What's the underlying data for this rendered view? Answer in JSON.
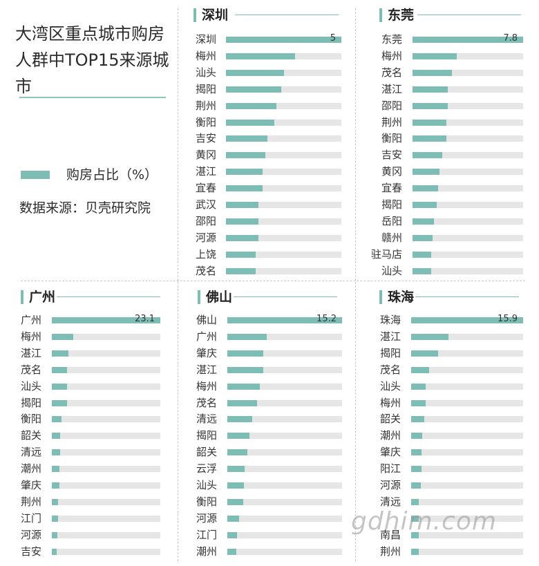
{
  "title": "大湾区重点城市购房人群中TOP15来源城市",
  "legend": {
    "label": "购房占比（%）",
    "color": "#7ebdb6"
  },
  "source": "数据来源：贝壳研究院",
  "watermark": "gdhim.com",
  "chart_data": [
    {
      "type": "bar",
      "title": "深圳",
      "unit": "%",
      "max_value": 5,
      "categories": [
        "深圳",
        "梅州",
        "汕头",
        "揭阳",
        "荆州",
        "衡阳",
        "吉安",
        "黄冈",
        "湛江",
        "宜春",
        "武汉",
        "邵阳",
        "河源",
        "上饶",
        "茂名"
      ],
      "values": [
        5,
        3.0,
        2.5,
        2.4,
        2.2,
        2.1,
        1.8,
        1.7,
        1.6,
        1.6,
        1.4,
        1.4,
        1.4,
        1.3,
        1.3
      ],
      "value_labels": [
        "5",
        "",
        "",
        "",
        "",
        "",
        "",
        "",
        "",
        "",
        "",
        "",
        "",
        "",
        ""
      ]
    },
    {
      "type": "bar",
      "title": "东莞",
      "unit": "%",
      "max_value": 7.8,
      "categories": [
        "东莞",
        "梅州",
        "茂名",
        "湛江",
        "邵阳",
        "荆州",
        "衡阳",
        "吉安",
        "黄冈",
        "宜春",
        "揭阳",
        "岳阳",
        "赣州",
        "驻马店",
        "汕头"
      ],
      "values": [
        7.8,
        3.1,
        2.8,
        2.5,
        2.5,
        2.4,
        2.4,
        2.1,
        1.9,
        1.8,
        1.7,
        1.5,
        1.4,
        1.3,
        1.3
      ],
      "value_labels": [
        "7.8",
        "",
        "",
        "",
        "",
        "",
        "",
        "",
        "",
        "",
        "",
        "",
        "",
        "",
        ""
      ]
    },
    {
      "type": "bar",
      "title": "广州",
      "unit": "%",
      "max_value": 23.1,
      "categories": [
        "广州",
        "梅州",
        "湛江",
        "茂名",
        "汕头",
        "揭阳",
        "衡阳",
        "韶关",
        "清远",
        "潮州",
        "肇庆",
        "荆州",
        "江门",
        "河源",
        "吉安"
      ],
      "values": [
        23.1,
        4.5,
        3.5,
        3.3,
        3.2,
        3.2,
        2.0,
        1.8,
        1.8,
        1.6,
        1.6,
        1.3,
        1.3,
        1.2,
        1.1
      ],
      "value_labels": [
        "23.1",
        "",
        "",
        "",
        "",
        "",
        "",
        "",
        "",
        "",
        "",
        "",
        "",
        "",
        ""
      ]
    },
    {
      "type": "bar",
      "title": "佛山",
      "unit": "%",
      "max_value": 15.2,
      "categories": [
        "佛山",
        "广州",
        "肇庆",
        "湛江",
        "梅州",
        "茂名",
        "清远",
        "揭阳",
        "韶关",
        "云浮",
        "汕头",
        "衡阳",
        "河源",
        "江门",
        "潮州"
      ],
      "values": [
        15.2,
        5.2,
        4.8,
        4.8,
        4.3,
        3.9,
        3.3,
        2.9,
        2.7,
        2.3,
        2.2,
        2.1,
        1.6,
        1.3,
        1.2
      ],
      "value_labels": [
        "15.2",
        "",
        "",
        "",
        "",
        "",
        "",
        "",
        "",
        "",
        "",
        "",
        "",
        "",
        ""
      ]
    },
    {
      "type": "bar",
      "title": "珠海",
      "unit": "%",
      "max_value": 15.9,
      "categories": [
        "珠海",
        "湛江",
        "揭阳",
        "茂名",
        "汕头",
        "梅州",
        "韶关",
        "潮州",
        "肇庆",
        "阳江",
        "河源",
        "清远",
        "",
        "南昌",
        "荆州"
      ],
      "values": [
        15.9,
        5.3,
        3.8,
        2.6,
        2.1,
        2.1,
        1.9,
        1.6,
        1.5,
        1.5,
        1.4,
        1.1,
        1.1,
        1.1,
        1.1
      ],
      "value_labels": [
        "15.9",
        "",
        "",
        "",
        "",
        "",
        "",
        "",
        "",
        "",
        "",
        "",
        "",
        "",
        ""
      ]
    }
  ]
}
